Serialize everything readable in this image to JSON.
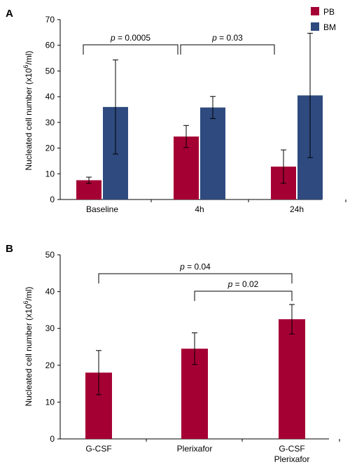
{
  "chart_data": [
    {
      "panel": "A",
      "type": "bar",
      "categories": [
        "Baseline",
        "4h",
        "24h"
      ],
      "series": [
        {
          "name": "PB",
          "values": [
            7.5,
            24.5,
            12.8
          ],
          "errors": [
            1.2,
            4.3,
            6.5
          ]
        },
        {
          "name": "BM",
          "values": [
            36.0,
            35.8,
            40.5
          ],
          "errors": [
            18.3,
            4.3,
            24.2
          ]
        }
      ],
      "ylabel_main": "Nucleated cell number (x10",
      "ylabel_sup": "6",
      "ylabel_end": "/ml)",
      "ylim": [
        0,
        70
      ],
      "yticks": [
        "0",
        "10",
        "20",
        "30",
        "40",
        "50",
        "60",
        "70"
      ],
      "legend_position": "top-right",
      "annotations": [
        {
          "label": "p",
          "value": " = 0.0005",
          "from": "Baseline",
          "to": "4h"
        },
        {
          "label": "p",
          "value": " = 0.03",
          "from": "4h",
          "to": "24h"
        }
      ]
    },
    {
      "panel": "B",
      "type": "bar",
      "categories": [
        [
          "G-CSF"
        ],
        [
          "Plerixafor"
        ],
        [
          "G-CSF",
          "Plerixafor"
        ]
      ],
      "values": [
        18.0,
        24.5,
        32.5
      ],
      "errors": [
        6.0,
        4.3,
        4.0
      ],
      "ylabel_main": "Nucleated cell number (x10",
      "ylabel_sup": "6",
      "ylabel_end": "/ml)",
      "ylim": [
        0,
        50
      ],
      "yticks": [
        "0",
        "10",
        "20",
        "30",
        "40",
        "50"
      ],
      "annotations": [
        {
          "label": "p",
          "value": " = 0.04",
          "from": 0,
          "to": 2
        },
        {
          "label": "p",
          "value": " = 0.02",
          "from": 1,
          "to": 2
        }
      ]
    }
  ],
  "colors": {
    "PB": "#a50034",
    "BM": "#2e4a7f",
    "axis": "#000000"
  }
}
